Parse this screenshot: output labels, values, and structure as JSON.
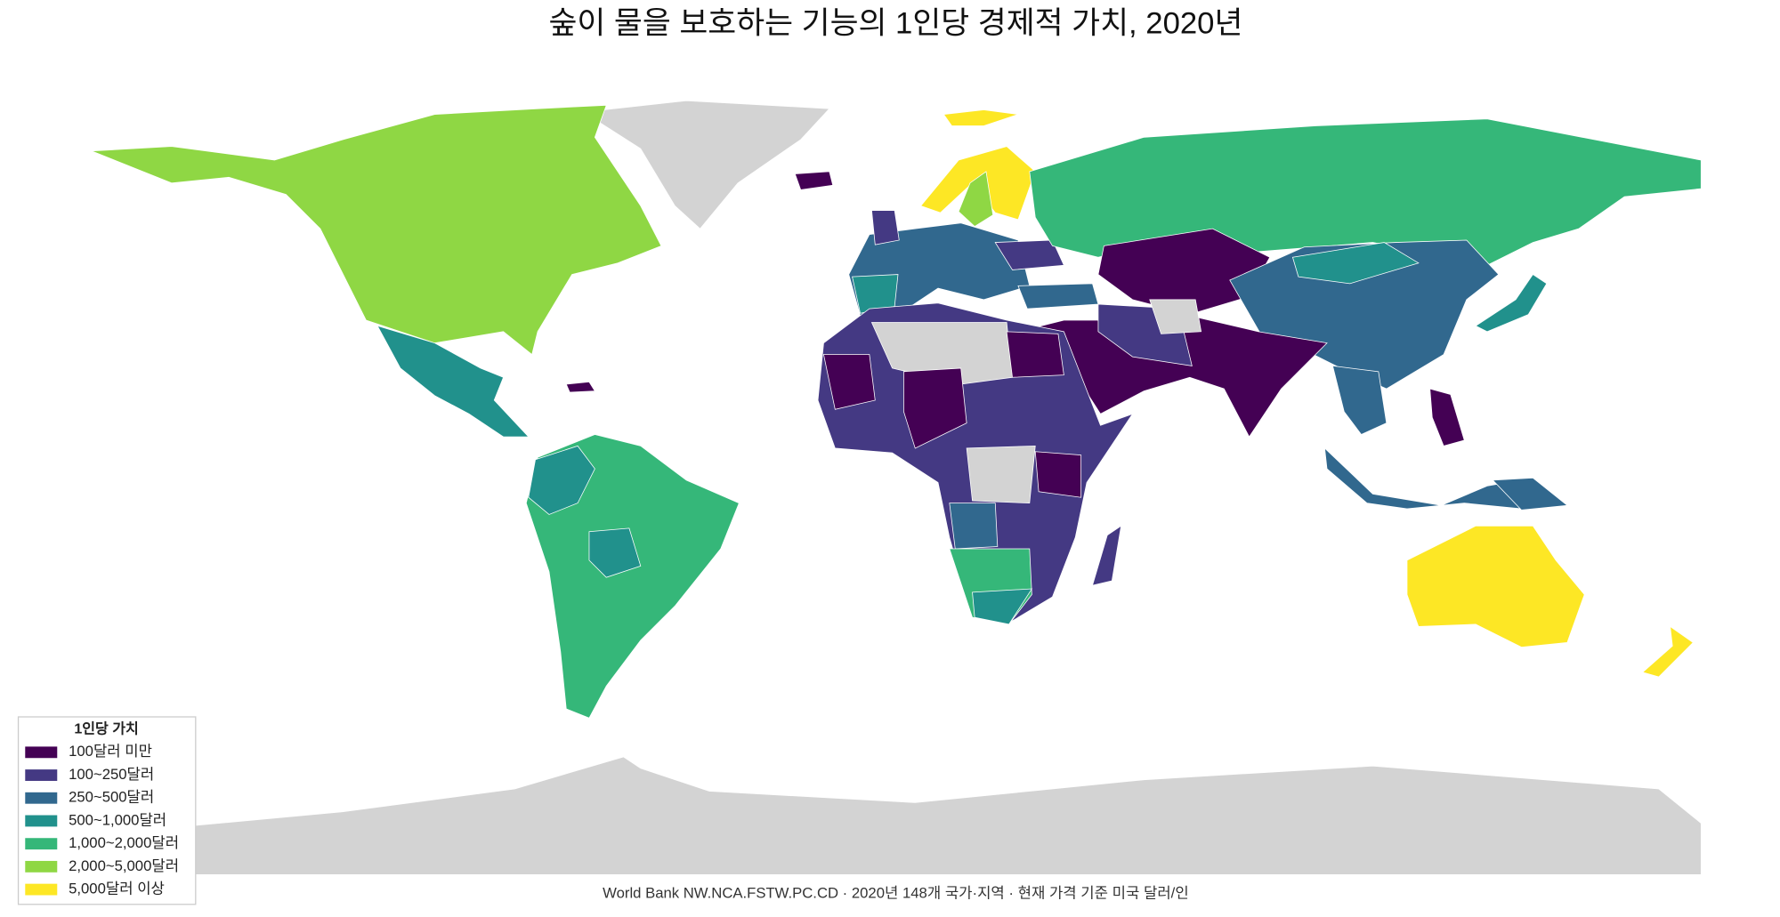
{
  "title": "숲이 물을 보호하는 기능의 1인당 경제적 가치, 2020년",
  "legend": {
    "title": "1인당 가치",
    "items": [
      {
        "label": "100달러 미만",
        "color": "#440154"
      },
      {
        "label": "100~250달러",
        "color": "#443983"
      },
      {
        "label": "250~500달러",
        "color": "#31688e"
      },
      {
        "label": "500~1,000달러",
        "color": "#21918c"
      },
      {
        "label": "1,000~2,000달러",
        "color": "#35b779"
      },
      {
        "label": "2,000~5,000달러",
        "color": "#8fd744"
      },
      {
        "label": "5,000달러 이상",
        "color": "#fde725"
      }
    ]
  },
  "source": "World Bank NW.NCA.FSTW.PC.CD · 2020년 148개 국가·지역 · 현재 가격 기준 미국 달러/인"
}
